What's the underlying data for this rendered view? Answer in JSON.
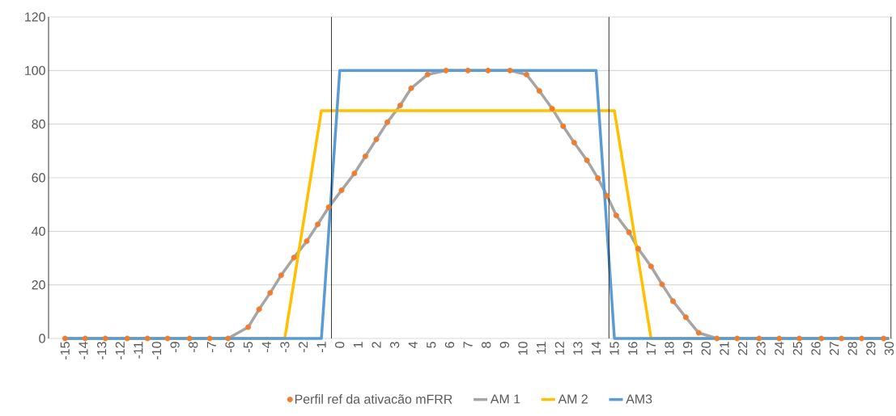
{
  "chart_data": {
    "type": "line",
    "x": [
      -15,
      -13.9,
      -12.8,
      -11.6,
      -10.5,
      -9.4,
      -8.2,
      -7.1,
      -6.1,
      -5.0,
      -4.4,
      -3.8,
      -3.2,
      -2.5,
      -1.8,
      -1.2,
      -0.6,
      0.1,
      0.8,
      1.4,
      2.0,
      2.6,
      3.3,
      3.9,
      4.8,
      5.8,
      7.0,
      8.1,
      9.3,
      10.2,
      10.9,
      11.6,
      12.2,
      12.8,
      13.5,
      14.1,
      14.6,
      15.1,
      15.8,
      16.3,
      17.0,
      17.6,
      18.2,
      18.9,
      19.6,
      20.6,
      21.7,
      22.9,
      24.0,
      25.1,
      26.3,
      27.4,
      28.5,
      29.7
    ],
    "series": [
      {
        "name": "Perfil ref da ativacão mFRR",
        "type": "scatter",
        "marker": "circle",
        "color": "#ed7d31",
        "values": [
          0,
          0,
          0,
          0,
          0,
          0,
          0,
          0,
          0,
          4.2,
          10.9,
          17,
          23.6,
          30.2,
          36.3,
          42.6,
          49,
          55.3,
          61.6,
          68,
          74.3,
          80.7,
          87,
          93.4,
          98.5,
          100,
          100,
          100,
          100,
          98.5,
          92.4,
          85.8,
          79.2,
          73.1,
          66.5,
          59.8,
          53.2,
          45.9,
          39.6,
          33.5,
          26.9,
          20.2,
          13.9,
          7.9,
          2.1,
          0,
          0,
          0,
          0,
          0,
          0,
          0,
          0,
          0
        ]
      },
      {
        "name": "AM 1",
        "color": "#a5a5a5",
        "values": [
          0,
          0,
          0,
          0,
          0,
          0,
          0,
          0,
          0,
          4.2,
          10.9,
          17,
          23.6,
          30.2,
          36.3,
          42.6,
          49,
          55.3,
          61.6,
          68,
          74.3,
          80.7,
          87,
          93.4,
          98.5,
          100,
          100,
          100,
          100,
          98.5,
          92.4,
          85.8,
          79.2,
          73.1,
          66.5,
          59.8,
          53.2,
          45.9,
          39.6,
          33.5,
          26.9,
          20.2,
          13.9,
          7.9,
          2.1,
          0,
          0,
          0,
          0,
          0,
          0,
          0,
          0,
          0
        ]
      },
      {
        "name": "AM 2",
        "color": "#ffc000",
        "x": [
          -15,
          -3,
          -1,
          15,
          17,
          30
        ],
        "values": [
          0,
          0,
          85,
          85,
          0,
          0
        ]
      },
      {
        "name": "AM3",
        "color": "#5b9bd5",
        "x": [
          -15,
          -1,
          0,
          14,
          15,
          30
        ],
        "values": [
          0,
          0,
          100,
          100,
          0,
          0
        ]
      }
    ],
    "xlim": [
      -15.9,
      30.2
    ],
    "xticks": [
      -15,
      -14,
      -13,
      -12,
      -11,
      -10,
      -9,
      -8,
      -7,
      -6,
      -5,
      -4,
      -3,
      -2,
      -1,
      0,
      1,
      2,
      3,
      4,
      5,
      6,
      7,
      8,
      9,
      10,
      11,
      12,
      13,
      14,
      15,
      16,
      17,
      18,
      19,
      20,
      21,
      22,
      23,
      24,
      25,
      26,
      27,
      28,
      29,
      30
    ],
    "ylim": [
      0,
      120
    ],
    "yticks": [
      0,
      20,
      40,
      60,
      80,
      100,
      120
    ],
    "grid": "y",
    "legend": "bottom",
    "ref_lines": [
      {
        "axis": "x",
        "value": -0.45,
        "color": "#000000"
      },
      {
        "axis": "x",
        "value": 14.7,
        "color": "#000000"
      },
      {
        "axis": "x",
        "value": 30.1,
        "color": "#000000"
      }
    ]
  }
}
